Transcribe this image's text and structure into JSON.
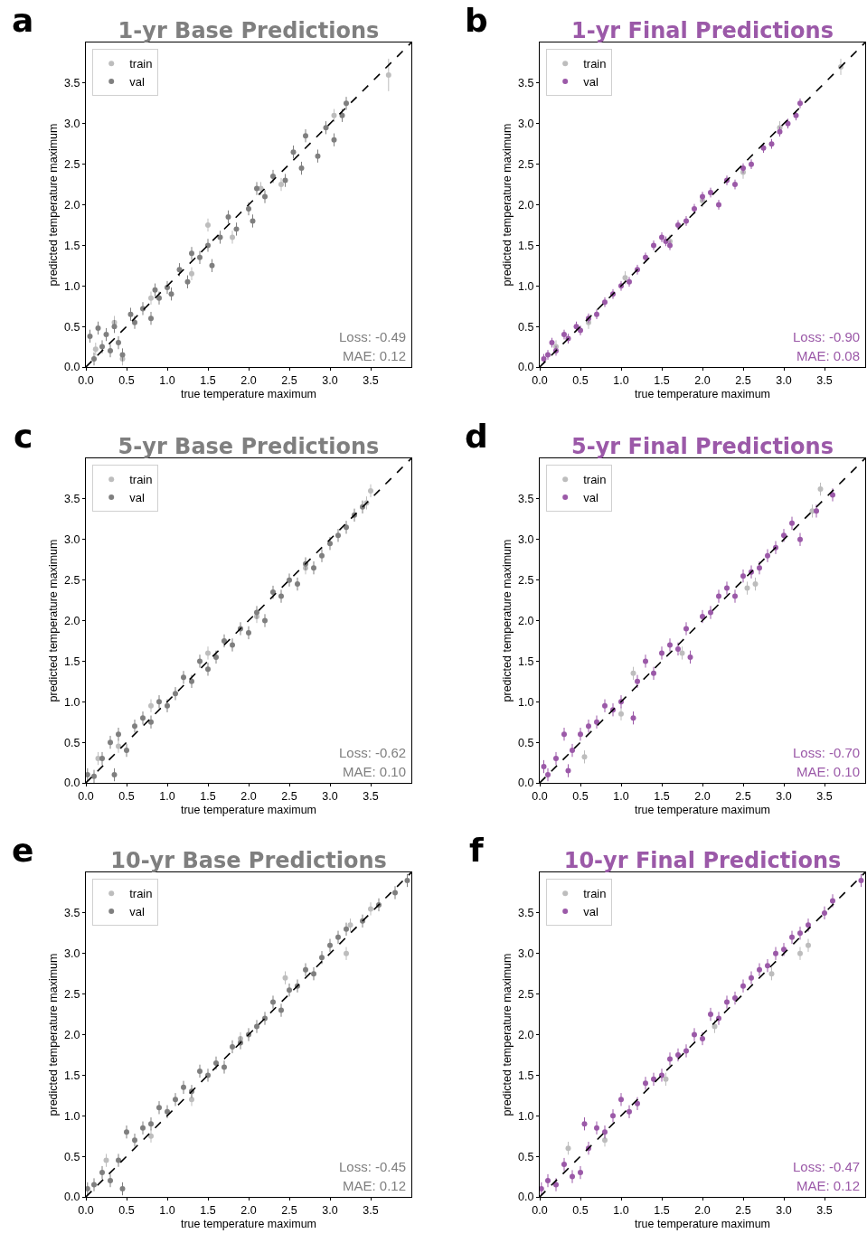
{
  "chart_data": [
    {
      "type": "scatter",
      "title": "1-yr Base Predictions",
      "xlabel": "true temperature maximum",
      "ylabel": "predicted temperature maximum",
      "xlim": [
        0,
        4
      ],
      "ylim": [
        0,
        4
      ],
      "xticks": [
        {
          "value": 0,
          "label": "0.0"
        },
        0.5,
        {
          "value": 1,
          "label": "1.0"
        },
        1.5,
        {
          "value": 2,
          "label": "2.0"
        },
        2.5,
        {
          "value": 3,
          "label": "3.0"
        },
        3.5
      ],
      "yticks": [
        {
          "value": 0,
          "label": "0.0"
        },
        0.5,
        {
          "value": 1,
          "label": "1.0"
        },
        1.5,
        {
          "value": 2,
          "label": "2.0"
        },
        2.5,
        {
          "value": 3,
          "label": "3.0"
        },
        3.5
      ],
      "grid": false,
      "legend": "top left",
      "marker": "circle",
      "annotations": [
        "a",
        "Loss: -0.49",
        "MAE: 0.12"
      ],
      "series": [
        {
          "name": "train",
          "color": "#bdbdbd",
          "x": [
            0.12,
            0.35,
            0.45,
            0.8,
            1.3,
            1.5,
            1.8,
            2.15,
            2.4,
            3.05,
            3.72
          ],
          "values": [
            0.22,
            0.55,
            0.1,
            0.85,
            1.15,
            1.75,
            1.6,
            2.2,
            2.25,
            3.1,
            3.6
          ],
          "errors": [
            0.08,
            0.08,
            0.08,
            0.08,
            0.08,
            0.08,
            0.08,
            0.08,
            0.08,
            0.08,
            0.2
          ]
        },
        {
          "name": "val",
          "color": "#7f7f7f",
          "x": [
            0.05,
            0.1,
            0.15,
            0.2,
            0.25,
            0.3,
            0.35,
            0.4,
            0.45,
            0.55,
            0.6,
            0.7,
            0.8,
            0.85,
            0.9,
            1.0,
            1.05,
            1.15,
            1.25,
            1.3,
            1.4,
            1.5,
            1.55,
            1.65,
            1.75,
            1.85,
            2.0,
            2.05,
            2.1,
            2.2,
            2.3,
            2.45,
            2.55,
            2.65,
            2.7,
            2.85,
            2.95,
            3.05,
            3.15,
            3.2
          ],
          "values": [
            0.38,
            0.1,
            0.48,
            0.25,
            0.4,
            0.2,
            0.5,
            0.3,
            0.15,
            0.65,
            0.55,
            0.72,
            0.6,
            0.95,
            0.85,
            0.98,
            0.9,
            1.2,
            1.05,
            1.4,
            1.35,
            1.5,
            1.25,
            1.6,
            1.85,
            1.7,
            1.95,
            1.8,
            2.2,
            2.1,
            2.35,
            2.3,
            2.65,
            2.45,
            2.85,
            2.6,
            2.95,
            2.8,
            3.1,
            3.25
          ],
          "errors": [
            0.08,
            0.08,
            0.08,
            0.08,
            0.08,
            0.08,
            0.08,
            0.08,
            0.08,
            0.08,
            0.08,
            0.08,
            0.08,
            0.08,
            0.08,
            0.08,
            0.08,
            0.08,
            0.08,
            0.08,
            0.08,
            0.08,
            0.08,
            0.08,
            0.08,
            0.08,
            0.08,
            0.08,
            0.08,
            0.08,
            0.08,
            0.08,
            0.08,
            0.08,
            0.08,
            0.08,
            0.08,
            0.08,
            0.08,
            0.08
          ]
        },
        {
          "type": "line",
          "color": "#000000",
          "line_style": "dashed",
          "marker": "none",
          "x": [
            0,
            4
          ],
          "values": [
            0,
            4
          ]
        }
      ]
    },
    {
      "type": "scatter",
      "title": "1-yr Final Predictions",
      "xlabel": "true temperature maximum",
      "ylabel": "predicted temperature maximum",
      "xlim": [
        0,
        4
      ],
      "ylim": [
        0,
        4
      ],
      "xticks": [
        {
          "value": 0,
          "label": "0.0"
        },
        0.5,
        {
          "value": 1,
          "label": "1.0"
        },
        1.5,
        {
          "value": 2,
          "label": "2.0"
        },
        2.5,
        {
          "value": 3,
          "label": "3.0"
        },
        3.5
      ],
      "yticks": [
        {
          "value": 0,
          "label": "0.0"
        },
        0.5,
        {
          "value": 1,
          "label": "1.0"
        },
        1.5,
        {
          "value": 2,
          "label": "2.0"
        },
        2.5,
        {
          "value": 3,
          "label": "3.0"
        },
        3.5
      ],
      "grid": false,
      "legend": "top left",
      "marker": "circle",
      "annotations": [
        "b",
        "Loss: -0.90",
        "MAE: 0.08"
      ],
      "series": [
        {
          "name": "train",
          "color": "#bdbdbd",
          "x": [
            0.2,
            0.6,
            1.05,
            1.6,
            2.0,
            2.5,
            2.95,
            3.7
          ],
          "values": [
            0.25,
            0.55,
            1.1,
            1.55,
            2.05,
            2.4,
            2.95,
            3.7
          ],
          "errors": [
            0.08,
            0.08,
            0.08,
            0.08,
            0.08,
            0.08,
            0.08,
            0.1
          ]
        },
        {
          "name": "val",
          "color": "#9b59a8",
          "x": [
            0.05,
            0.1,
            0.15,
            0.2,
            0.3,
            0.35,
            0.45,
            0.5,
            0.6,
            0.7,
            0.8,
            0.9,
            1.0,
            1.1,
            1.2,
            1.3,
            1.4,
            1.5,
            1.55,
            1.6,
            1.7,
            1.8,
            1.9,
            2.0,
            2.1,
            2.2,
            2.3,
            2.4,
            2.5,
            2.6,
            2.75,
            2.85,
            2.95,
            3.05,
            3.15,
            3.2
          ],
          "values": [
            0.1,
            0.15,
            0.3,
            0.2,
            0.4,
            0.35,
            0.5,
            0.45,
            0.6,
            0.65,
            0.8,
            0.9,
            1.0,
            1.05,
            1.2,
            1.35,
            1.5,
            1.6,
            1.55,
            1.5,
            1.75,
            1.8,
            1.95,
            2.1,
            2.15,
            2.0,
            2.3,
            2.25,
            2.45,
            2.5,
            2.7,
            2.75,
            2.9,
            3.0,
            3.1,
            3.25
          ],
          "errors": [
            0.06,
            0.06,
            0.06,
            0.06,
            0.06,
            0.06,
            0.06,
            0.06,
            0.06,
            0.06,
            0.06,
            0.06,
            0.06,
            0.06,
            0.06,
            0.06,
            0.06,
            0.06,
            0.06,
            0.06,
            0.06,
            0.06,
            0.06,
            0.06,
            0.06,
            0.06,
            0.06,
            0.06,
            0.06,
            0.06,
            0.06,
            0.06,
            0.06,
            0.06,
            0.06,
            0.06
          ]
        },
        {
          "type": "line",
          "color": "#000000",
          "line_style": "dashed",
          "marker": "none",
          "x": [
            0,
            4
          ],
          "values": [
            0,
            4
          ]
        }
      ]
    },
    {
      "type": "scatter",
      "title": "5-yr Base Predictions",
      "xlabel": "true temperature maximum",
      "ylabel": "predicted temperature maximum",
      "xlim": [
        0,
        4
      ],
      "ylim": [
        0,
        4
      ],
      "xticks": [
        {
          "value": 0,
          "label": "0.0"
        },
        0.5,
        {
          "value": 1,
          "label": "1.0"
        },
        1.5,
        {
          "value": 2,
          "label": "2.0"
        },
        2.5,
        {
          "value": 3,
          "label": "3.0"
        },
        3.5
      ],
      "yticks": [
        {
          "value": 0,
          "label": "0.0"
        },
        0.5,
        {
          "value": 1,
          "label": "1.0"
        },
        1.5,
        {
          "value": 2,
          "label": "2.0"
        },
        2.5,
        {
          "value": 3,
          "label": "3.0"
        },
        3.5
      ],
      "grid": false,
      "legend": "top left",
      "marker": "circle",
      "annotations": [
        "c",
        "Loss: -0.62",
        "MAE: 0.10"
      ],
      "series": [
        {
          "name": "train",
          "color": "#bdbdbd",
          "x": [
            0.15,
            0.4,
            0.8,
            1.5,
            2.1,
            2.7,
            3.45,
            3.5
          ],
          "values": [
            0.3,
            0.45,
            0.95,
            1.6,
            2.05,
            2.65,
            3.45,
            3.6
          ],
          "errors": [
            0.08,
            0.08,
            0.08,
            0.08,
            0.08,
            0.08,
            0.08,
            0.08
          ]
        },
        {
          "name": "val",
          "color": "#7f7f7f",
          "x": [
            0.02,
            0.1,
            0.2,
            0.3,
            0.35,
            0.4,
            0.5,
            0.6,
            0.7,
            0.8,
            0.9,
            1.0,
            1.1,
            1.2,
            1.3,
            1.4,
            1.5,
            1.6,
            1.7,
            1.8,
            1.9,
            2.0,
            2.1,
            2.2,
            2.3,
            2.4,
            2.5,
            2.6,
            2.7,
            2.8,
            2.9,
            3.0,
            3.1,
            3.2,
            3.3,
            3.4
          ],
          "values": [
            0.1,
            0.08,
            0.3,
            0.5,
            0.1,
            0.6,
            0.4,
            0.7,
            0.8,
            0.75,
            1.0,
            0.95,
            1.1,
            1.3,
            1.25,
            1.5,
            1.4,
            1.55,
            1.75,
            1.7,
            1.9,
            1.85,
            2.1,
            2.0,
            2.35,
            2.3,
            2.5,
            2.45,
            2.7,
            2.65,
            2.8,
            2.95,
            3.05,
            3.15,
            3.3,
            3.4
          ],
          "errors": [
            0.08,
            0.08,
            0.08,
            0.08,
            0.08,
            0.08,
            0.08,
            0.08,
            0.08,
            0.08,
            0.08,
            0.08,
            0.08,
            0.08,
            0.08,
            0.08,
            0.08,
            0.08,
            0.08,
            0.08,
            0.08,
            0.08,
            0.08,
            0.08,
            0.08,
            0.08,
            0.08,
            0.08,
            0.08,
            0.08,
            0.08,
            0.08,
            0.08,
            0.08,
            0.08,
            0.08
          ]
        },
        {
          "type": "line",
          "color": "#000000",
          "line_style": "dashed",
          "marker": "none",
          "x": [
            0,
            4
          ],
          "values": [
            0,
            4
          ]
        }
      ]
    },
    {
      "type": "scatter",
      "title": "5-yr Final Predictions",
      "xlabel": "true temperature maximum",
      "ylabel": "predicted temperature maximum",
      "xlim": [
        0,
        4
      ],
      "ylim": [
        0,
        4
      ],
      "xticks": [
        {
          "value": 0,
          "label": "0.0"
        },
        0.5,
        {
          "value": 1,
          "label": "1.0"
        },
        1.5,
        {
          "value": 2,
          "label": "2.0"
        },
        2.5,
        {
          "value": 3,
          "label": "3.0"
        },
        3.5
      ],
      "yticks": [
        {
          "value": 0,
          "label": "0.0"
        },
        0.5,
        {
          "value": 1,
          "label": "1.0"
        },
        1.5,
        {
          "value": 2,
          "label": "2.0"
        },
        2.5,
        {
          "value": 3,
          "label": "3.0"
        },
        3.5
      ],
      "grid": false,
      "legend": "top left",
      "marker": "circle",
      "annotations": [
        "d",
        "Loss: -0.70",
        "MAE: 0.10"
      ],
      "series": [
        {
          "name": "train",
          "color": "#bdbdbd",
          "x": [
            0.55,
            1.0,
            1.15,
            1.75,
            2.55,
            2.65,
            3.35,
            3.45
          ],
          "values": [
            0.32,
            0.85,
            1.35,
            1.6,
            2.4,
            2.45,
            3.35,
            3.62
          ],
          "errors": [
            0.08,
            0.08,
            0.08,
            0.08,
            0.08,
            0.08,
            0.08,
            0.08
          ]
        },
        {
          "name": "val",
          "color": "#9b59a8",
          "x": [
            0.05,
            0.1,
            0.2,
            0.3,
            0.35,
            0.4,
            0.5,
            0.6,
            0.7,
            0.8,
            0.9,
            1.0,
            1.15,
            1.2,
            1.3,
            1.4,
            1.5,
            1.6,
            1.7,
            1.8,
            1.85,
            2.0,
            2.1,
            2.2,
            2.3,
            2.4,
            2.5,
            2.6,
            2.7,
            2.8,
            2.9,
            3.0,
            3.1,
            3.2,
            3.4,
            3.6
          ],
          "values": [
            0.2,
            0.1,
            0.3,
            0.6,
            0.15,
            0.4,
            0.6,
            0.7,
            0.75,
            0.95,
            0.9,
            1.0,
            0.8,
            1.25,
            1.5,
            1.35,
            1.6,
            1.7,
            1.65,
            1.9,
            1.55,
            2.05,
            2.1,
            2.3,
            2.4,
            2.3,
            2.55,
            2.6,
            2.65,
            2.8,
            2.9,
            3.05,
            3.2,
            3.0,
            3.35,
            3.55
          ],
          "errors": [
            0.08,
            0.08,
            0.08,
            0.08,
            0.08,
            0.08,
            0.08,
            0.08,
            0.08,
            0.08,
            0.08,
            0.08,
            0.08,
            0.08,
            0.08,
            0.08,
            0.08,
            0.08,
            0.08,
            0.08,
            0.08,
            0.08,
            0.08,
            0.08,
            0.08,
            0.08,
            0.08,
            0.08,
            0.08,
            0.08,
            0.08,
            0.08,
            0.08,
            0.08,
            0.08,
            0.08
          ]
        },
        {
          "type": "line",
          "color": "#000000",
          "line_style": "dashed",
          "marker": "none",
          "x": [
            0,
            4
          ],
          "values": [
            0,
            4
          ]
        }
      ]
    },
    {
      "type": "scatter",
      "title": "10-yr Base Predictions",
      "xlabel": "true temperature maximum",
      "ylabel": "predicted temperature maximum",
      "xlim": [
        0,
        4
      ],
      "ylim": [
        0,
        4
      ],
      "xticks": [
        {
          "value": 0,
          "label": "0.0"
        },
        0.5,
        {
          "value": 1,
          "label": "1.0"
        },
        1.5,
        {
          "value": 2,
          "label": "2.0"
        },
        2.5,
        {
          "value": 3,
          "label": "3.0"
        },
        3.5
      ],
      "yticks": [
        {
          "value": 0,
          "label": "0.0"
        },
        0.5,
        {
          "value": 1,
          "label": "1.0"
        },
        1.5,
        {
          "value": 2,
          "label": "2.0"
        },
        2.5,
        {
          "value": 3,
          "label": "3.0"
        },
        3.5
      ],
      "grid": false,
      "legend": "top left",
      "marker": "circle",
      "annotations": [
        "e",
        "Loss: -0.45",
        "MAE: 0.12"
      ],
      "series": [
        {
          "name": "train",
          "color": "#bdbdbd",
          "x": [
            0.25,
            0.8,
            1.3,
            1.9,
            2.45,
            3.2,
            3.25,
            3.5
          ],
          "values": [
            0.45,
            0.75,
            1.2,
            1.95,
            2.7,
            3.0,
            3.35,
            3.55
          ],
          "errors": [
            0.08,
            0.08,
            0.08,
            0.08,
            0.08,
            0.08,
            0.08,
            0.08
          ]
        },
        {
          "name": "val",
          "color": "#7f7f7f",
          "x": [
            0.02,
            0.1,
            0.2,
            0.3,
            0.4,
            0.45,
            0.5,
            0.6,
            0.7,
            0.8,
            0.9,
            1.0,
            1.1,
            1.2,
            1.3,
            1.4,
            1.5,
            1.6,
            1.7,
            1.8,
            1.9,
            2.0,
            2.1,
            2.2,
            2.3,
            2.4,
            2.5,
            2.6,
            2.7,
            2.8,
            2.9,
            3.0,
            3.1,
            3.2,
            3.4,
            3.6,
            3.8,
            3.95
          ],
          "values": [
            0.1,
            0.15,
            0.3,
            0.2,
            0.45,
            0.1,
            0.8,
            0.7,
            0.85,
            0.9,
            1.1,
            1.05,
            1.2,
            1.35,
            1.3,
            1.55,
            1.5,
            1.65,
            1.6,
            1.85,
            1.9,
            2.0,
            2.1,
            2.2,
            2.4,
            2.3,
            2.55,
            2.6,
            2.8,
            2.75,
            2.95,
            3.1,
            3.2,
            3.3,
            3.4,
            3.6,
            3.75,
            3.9
          ],
          "errors": [
            0.08,
            0.08,
            0.08,
            0.08,
            0.08,
            0.08,
            0.08,
            0.08,
            0.08,
            0.08,
            0.08,
            0.08,
            0.08,
            0.08,
            0.08,
            0.08,
            0.08,
            0.08,
            0.08,
            0.08,
            0.08,
            0.08,
            0.08,
            0.08,
            0.08,
            0.08,
            0.08,
            0.08,
            0.08,
            0.08,
            0.08,
            0.08,
            0.08,
            0.08,
            0.08,
            0.08,
            0.08,
            0.08
          ]
        },
        {
          "type": "line",
          "color": "#000000",
          "line_style": "dashed",
          "marker": "none",
          "x": [
            0,
            4
          ],
          "values": [
            0,
            4
          ]
        }
      ]
    },
    {
      "type": "scatter",
      "title": "10-yr Final Predictions",
      "xlabel": "true temperature maximum",
      "ylabel": "predicted temperature maximum",
      "xlim": [
        0,
        4
      ],
      "ylim": [
        0,
        4
      ],
      "xticks": [
        {
          "value": 0,
          "label": "0.0"
        },
        0.5,
        {
          "value": 1,
          "label": "1.0"
        },
        1.5,
        {
          "value": 2,
          "label": "2.0"
        },
        2.5,
        {
          "value": 3,
          "label": "3.0"
        },
        3.5
      ],
      "yticks": [
        {
          "value": 0,
          "label": "0.0"
        },
        0.5,
        {
          "value": 1,
          "label": "1.0"
        },
        1.5,
        {
          "value": 2,
          "label": "2.0"
        },
        2.5,
        {
          "value": 3,
          "label": "3.0"
        },
        3.5
      ],
      "grid": false,
      "legend": "top left",
      "marker": "circle",
      "annotations": [
        "f",
        "Loss: -0.47",
        "MAE: 0.12"
      ],
      "series": [
        {
          "name": "train",
          "color": "#bdbdbd",
          "x": [
            0.35,
            0.8,
            1.55,
            2.15,
            2.85,
            3.2,
            3.3
          ],
          "values": [
            0.6,
            0.7,
            1.45,
            2.1,
            2.75,
            3.0,
            3.1
          ],
          "errors": [
            0.08,
            0.08,
            0.08,
            0.08,
            0.08,
            0.08,
            0.08
          ]
        },
        {
          "name": "val",
          "color": "#9b59a8",
          "x": [
            0.02,
            0.1,
            0.2,
            0.3,
            0.4,
            0.5,
            0.55,
            0.6,
            0.7,
            0.8,
            0.9,
            1.0,
            1.1,
            1.2,
            1.3,
            1.4,
            1.5,
            1.6,
            1.7,
            1.8,
            1.9,
            2.0,
            2.1,
            2.2,
            2.3,
            2.4,
            2.5,
            2.6,
            2.7,
            2.8,
            2.9,
            3.0,
            3.1,
            3.2,
            3.3,
            3.5,
            3.6,
            3.95
          ],
          "values": [
            0.1,
            0.2,
            0.15,
            0.4,
            0.25,
            0.3,
            0.9,
            0.6,
            0.85,
            0.8,
            1.0,
            1.2,
            1.05,
            1.15,
            1.4,
            1.45,
            1.5,
            1.7,
            1.75,
            1.8,
            2.0,
            1.95,
            2.25,
            2.2,
            2.4,
            2.45,
            2.6,
            2.7,
            2.8,
            2.85,
            3.0,
            3.05,
            3.2,
            3.25,
            3.35,
            3.5,
            3.65,
            3.9
          ],
          "errors": [
            0.08,
            0.08,
            0.08,
            0.08,
            0.08,
            0.08,
            0.08,
            0.08,
            0.08,
            0.08,
            0.08,
            0.08,
            0.08,
            0.08,
            0.08,
            0.08,
            0.08,
            0.08,
            0.08,
            0.08,
            0.08,
            0.08,
            0.08,
            0.08,
            0.08,
            0.08,
            0.08,
            0.08,
            0.08,
            0.08,
            0.08,
            0.08,
            0.08,
            0.08,
            0.08,
            0.08,
            0.08,
            0.08
          ]
        },
        {
          "type": "line",
          "color": "#000000",
          "line_style": "dashed",
          "marker": "none",
          "x": [
            0,
            4
          ],
          "values": [
            0,
            4
          ]
        }
      ]
    }
  ]
}
